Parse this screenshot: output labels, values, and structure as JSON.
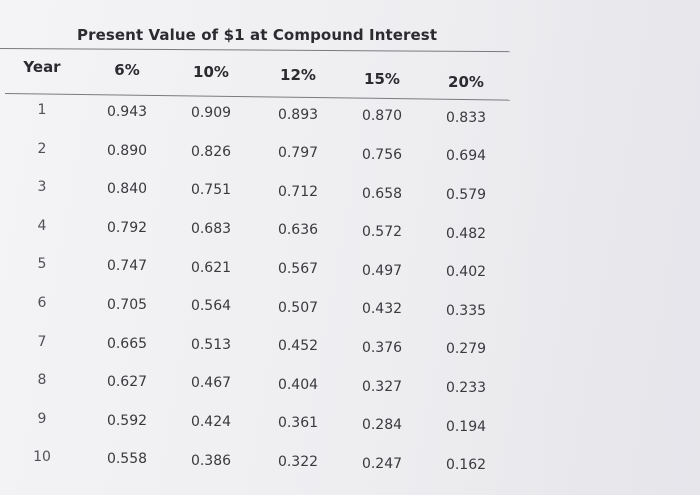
{
  "table": {
    "title": "Present Value of $1 at Compound Interest",
    "headers": [
      "Year",
      "6%",
      "10%",
      "12%",
      "15%",
      "20%"
    ],
    "rows": [
      [
        "1",
        "0.943",
        "0.909",
        "0.893",
        "0.870",
        "0.833"
      ],
      [
        "2",
        "0.890",
        "0.826",
        "0.797",
        "0.756",
        "0.694"
      ],
      [
        "3",
        "0.840",
        "0.751",
        "0.712",
        "0.658",
        "0.579"
      ],
      [
        "4",
        "0.792",
        "0.683",
        "0.636",
        "0.572",
        "0.482"
      ],
      [
        "5",
        "0.747",
        "0.621",
        "0.567",
        "0.497",
        "0.402"
      ],
      [
        "6",
        "0.705",
        "0.564",
        "0.507",
        "0.432",
        "0.335"
      ],
      [
        "7",
        "0.665",
        "0.513",
        "0.452",
        "0.376",
        "0.279"
      ],
      [
        "8",
        "0.627",
        "0.467",
        "0.404",
        "0.327",
        "0.233"
      ],
      [
        "9",
        "0.592",
        "0.424",
        "0.361",
        "0.284",
        "0.194"
      ],
      [
        "10",
        "0.558",
        "0.386",
        "0.322",
        "0.247",
        "0.162"
      ]
    ]
  }
}
